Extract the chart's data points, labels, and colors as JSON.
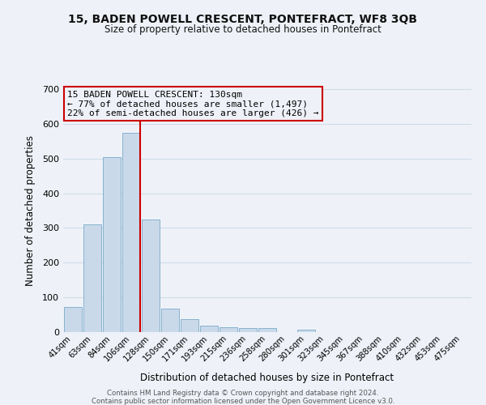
{
  "title": "15, BADEN POWELL CRESCENT, PONTEFRACT, WF8 3QB",
  "subtitle": "Size of property relative to detached houses in Pontefract",
  "xlabel": "Distribution of detached houses by size in Pontefract",
  "ylabel": "Number of detached properties",
  "bar_labels": [
    "41sqm",
    "63sqm",
    "84sqm",
    "106sqm",
    "128sqm",
    "150sqm",
    "171sqm",
    "193sqm",
    "215sqm",
    "236sqm",
    "258sqm",
    "280sqm",
    "301sqm",
    "323sqm",
    "345sqm",
    "367sqm",
    "388sqm",
    "410sqm",
    "432sqm",
    "453sqm",
    "475sqm"
  ],
  "bar_values": [
    72,
    311,
    505,
    574,
    325,
    67,
    38,
    19,
    15,
    11,
    12,
    0,
    7,
    0,
    0,
    0,
    0,
    0,
    0,
    0,
    0
  ],
  "bar_color": "#c9d9ea",
  "bar_edge_color": "#7aaac8",
  "grid_color": "#d0dce8",
  "bg_color": "#eef2f8",
  "vline_color": "#cc0000",
  "annotation_line1": "15 BADEN POWELL CRESCENT: 130sqm",
  "annotation_line2": "← 77% of detached houses are smaller (1,497)",
  "annotation_line3": "22% of semi-detached houses are larger (426) →",
  "box_edge_color": "#cc0000",
  "ylim": [
    0,
    700
  ],
  "yticks": [
    0,
    100,
    200,
    300,
    400,
    500,
    600,
    700
  ],
  "footer1": "Contains HM Land Registry data © Crown copyright and database right 2024.",
  "footer2": "Contains public sector information licensed under the Open Government Licence v3.0."
}
